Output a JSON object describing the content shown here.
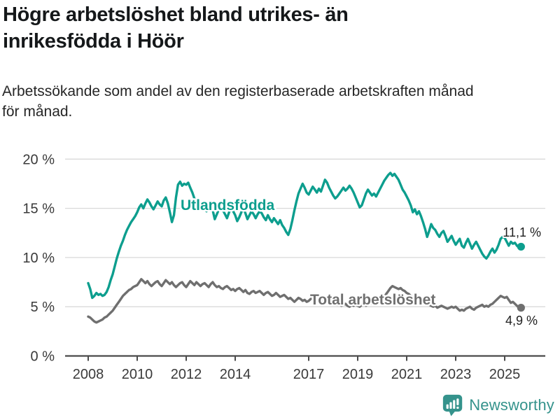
{
  "header": {
    "title": "Högre arbetslöshet bland utrikes- än\ninrikesfödda i Höör",
    "subtitle": "Arbetssökande som andel av den registerbaserade arbetskraften månad\nför månad."
  },
  "chart_data": {
    "type": "line",
    "title": "Högre arbetslöshet bland utrikes- än inrikesfödda i Höör",
    "subtitle": "Arbetssökande som andel av den registerbaserade arbetskraften månad för månad.",
    "x_unit": "month",
    "x_start_year": 2008,
    "x_end_label": "2025",
    "xlim_years": [
      2007.0,
      2026.6
    ],
    "ylim": [
      0,
      20
    ],
    "grid": true,
    "legend_position": "inline-labels",
    "x_tick_years": [
      2008,
      2010,
      2012,
      2014,
      2017,
      2019,
      2021,
      2023,
      2025
    ],
    "y_ticks": [
      {
        "value": 0,
        "label": "0 %"
      },
      {
        "value": 5,
        "label": "5 %"
      },
      {
        "value": 10,
        "label": "10 %"
      },
      {
        "value": 15,
        "label": "15 %"
      },
      {
        "value": 20,
        "label": "20 %"
      }
    ],
    "series": [
      {
        "key": "utlandsfodda",
        "name": "Utlandsfödda",
        "color": "#0d9e8e",
        "end_value": 11.1,
        "end_label": "11,1 %",
        "values": [
          7.4,
          6.8,
          5.9,
          6.1,
          6.4,
          6.2,
          6.3,
          6.1,
          6.2,
          6.5,
          7.0,
          7.7,
          8.3,
          9.1,
          9.9,
          10.6,
          11.2,
          11.7,
          12.3,
          12.8,
          13.2,
          13.6,
          13.9,
          14.2,
          14.6,
          15.1,
          15.4,
          15.0,
          15.5,
          15.9,
          15.6,
          15.2,
          14.9,
          15.3,
          15.7,
          15.4,
          15.2,
          15.8,
          16.1,
          15.5,
          14.6,
          13.6,
          14.3,
          16.1,
          17.4,
          17.7,
          17.3,
          17.5,
          17.4,
          17.6,
          17.1,
          16.6,
          16.0,
          15.3,
          14.8,
          15.3,
          15.5,
          15.1,
          14.7,
          15.1,
          15.3,
          14.8,
          13.9,
          14.4,
          14.9,
          15.2,
          14.8,
          14.4,
          14.0,
          14.6,
          15.0,
          14.7,
          14.3,
          13.7,
          14.1,
          14.6,
          15.0,
          14.5,
          13.9,
          14.3,
          14.7,
          14.4,
          14.0,
          14.4,
          14.7,
          14.5,
          14.1,
          13.8,
          14.3,
          13.9,
          13.6,
          14.0,
          13.7,
          13.4,
          13.8,
          13.3,
          13.0,
          12.6,
          12.3,
          12.9,
          13.8,
          14.8,
          15.7,
          16.5,
          17.0,
          17.5,
          17.1,
          16.6,
          16.4,
          16.8,
          17.2,
          16.9,
          16.6,
          17.0,
          16.7,
          17.3,
          17.9,
          17.6,
          17.1,
          16.7,
          16.3,
          16.0,
          16.2,
          16.5,
          16.8,
          17.1,
          16.8,
          17.0,
          17.3,
          17.0,
          16.6,
          16.1,
          15.6,
          15.1,
          15.3,
          15.9,
          16.5,
          16.9,
          16.6,
          16.3,
          16.5,
          16.2,
          16.6,
          17.0,
          17.4,
          17.8,
          18.1,
          18.4,
          18.6,
          18.3,
          18.5,
          18.2,
          17.9,
          17.4,
          16.9,
          16.6,
          16.2,
          15.8,
          15.3,
          14.6,
          14.9,
          14.4,
          14.7,
          14.2,
          13.6,
          12.9,
          12.1,
          12.7,
          13.4,
          13.0,
          12.8,
          12.4,
          12.1,
          12.5,
          12.7,
          12.2,
          11.6,
          11.9,
          12.2,
          11.7,
          11.3,
          11.6,
          11.9,
          11.2,
          11.0,
          11.5,
          11.9,
          11.4,
          10.9,
          11.3,
          11.6,
          11.2,
          10.8,
          10.4,
          10.1,
          9.9,
          10.2,
          10.6,
          10.9,
          10.5,
          10.8,
          11.3,
          11.9,
          12.1,
          12.0,
          11.6,
          11.2,
          11.6,
          11.4,
          11.5,
          11.2,
          11.0,
          11.1
        ]
      },
      {
        "key": "total",
        "name": "Total arbetslöshet",
        "color": "#6f6f6f",
        "end_value": 4.9,
        "end_label": "4,9 %",
        "values": [
          4.0,
          3.9,
          3.7,
          3.5,
          3.4,
          3.5,
          3.6,
          3.7,
          3.9,
          4.0,
          4.2,
          4.4,
          4.6,
          4.9,
          5.2,
          5.5,
          5.8,
          6.1,
          6.3,
          6.5,
          6.7,
          6.8,
          7.0,
          7.1,
          7.2,
          7.5,
          7.8,
          7.6,
          7.4,
          7.6,
          7.3,
          7.1,
          7.3,
          7.5,
          7.6,
          7.3,
          7.1,
          7.4,
          7.7,
          7.5,
          7.3,
          7.5,
          7.2,
          7.0,
          7.2,
          7.4,
          7.5,
          7.2,
          7.0,
          7.3,
          7.6,
          7.4,
          7.2,
          7.5,
          7.3,
          7.1,
          7.3,
          7.4,
          7.2,
          7.0,
          7.3,
          7.5,
          7.2,
          7.0,
          7.1,
          6.9,
          6.8,
          7.0,
          7.1,
          6.9,
          6.7,
          6.8,
          6.6,
          6.8,
          6.9,
          6.7,
          6.5,
          6.7,
          6.4,
          6.3,
          6.5,
          6.6,
          6.4,
          6.5,
          6.6,
          6.4,
          6.2,
          6.4,
          6.5,
          6.3,
          6.1,
          6.2,
          6.4,
          6.2,
          6.0,
          6.1,
          6.2,
          6.0,
          5.8,
          5.9,
          5.7,
          5.5,
          5.7,
          5.9,
          5.8,
          5.6,
          5.7,
          5.5,
          5.6,
          5.8,
          5.9,
          5.7,
          5.5,
          5.6,
          5.8,
          5.6,
          5.4,
          5.5,
          5.3,
          5.4,
          5.3,
          5.4,
          5.2,
          5.3,
          5.1,
          5.2,
          5.3,
          5.1,
          5.0,
          5.2,
          5.1,
          5.2,
          5.1,
          5.0,
          5.2,
          5.3,
          5.1,
          5.2,
          5.4,
          5.3,
          5.2,
          5.4,
          5.5,
          5.6,
          5.8,
          6.0,
          6.3,
          6.6,
          6.9,
          7.1,
          7.0,
          6.9,
          6.8,
          6.9,
          6.7,
          6.6,
          6.4,
          6.3,
          6.1,
          6.0,
          5.9,
          5.8,
          5.9,
          5.7,
          5.6,
          5.4,
          5.3,
          5.2,
          5.1,
          5.0,
          5.1,
          4.9,
          5.0,
          5.1,
          5.0,
          4.9,
          4.8,
          4.9,
          5.0,
          4.9,
          5.0,
          4.8,
          4.6,
          4.7,
          4.6,
          4.8,
          4.9,
          5.0,
          4.8,
          4.7,
          4.9,
          5.0,
          5.1,
          5.2,
          5.0,
          5.1,
          5.0,
          5.2,
          5.3,
          5.5,
          5.7,
          5.9,
          6.1,
          6.0,
          5.9,
          6.0,
          5.7,
          5.4,
          5.5,
          5.3,
          5.1,
          4.9,
          4.9
        ]
      }
    ]
  },
  "footer": {
    "brand": "Newsworthy",
    "brand_color": "#35938c",
    "logo_icon": "bar-chart-speech-bubble"
  }
}
